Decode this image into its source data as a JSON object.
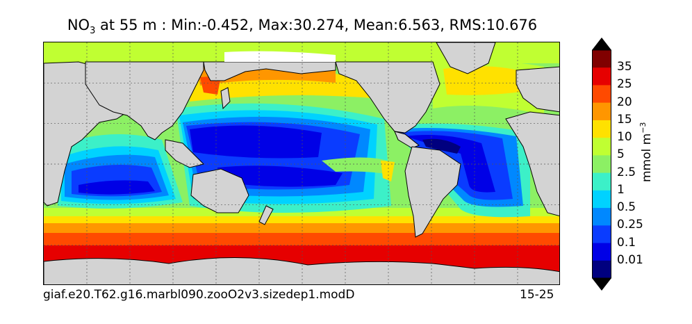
{
  "title": {
    "species": "NO",
    "species_sub": "3",
    "rest": " at 55 m : Min:-0.452, Max:30.274, Mean:6.563, RMS:10.676"
  },
  "footer": {
    "case_name": "giaf.e20.T62.g16.marbl090.zooO2v3.sizedep1.modD",
    "years": "15-25"
  },
  "colorbar": {
    "unit_text": "mmol m",
    "unit_exp": "−3",
    "ticks": [
      "35",
      "25",
      "20",
      "15",
      "10",
      "5",
      "2.5",
      "1",
      "0.5",
      "0.25",
      "0.1",
      "0.01"
    ],
    "colors": [
      "#00007f",
      "#0000e6",
      "#0a3cff",
      "#0088ff",
      "#00d2ff",
      "#3cf0c8",
      "#8cf064",
      "#c0ff32",
      "#ffe100",
      "#ff9600",
      "#ff4a00",
      "#e60000",
      "#800000"
    ],
    "over_color": "#000000",
    "under_color": "#000000"
  },
  "map": {
    "land_color": "#d3d3d3",
    "ocean_colors": {
      "deep_blue": "#0000e6",
      "blue": "#0a3cff",
      "mid_blue": "#0088ff",
      "cyan": "#00d2ff",
      "aqua": "#3cf0c8",
      "green": "#8cf064",
      "yellowgreen": "#c0ff32",
      "yellow": "#ffe100",
      "orange": "#ff9600",
      "redorange": "#ff4a00",
      "red": "#e60000",
      "navy": "#00007f"
    }
  }
}
